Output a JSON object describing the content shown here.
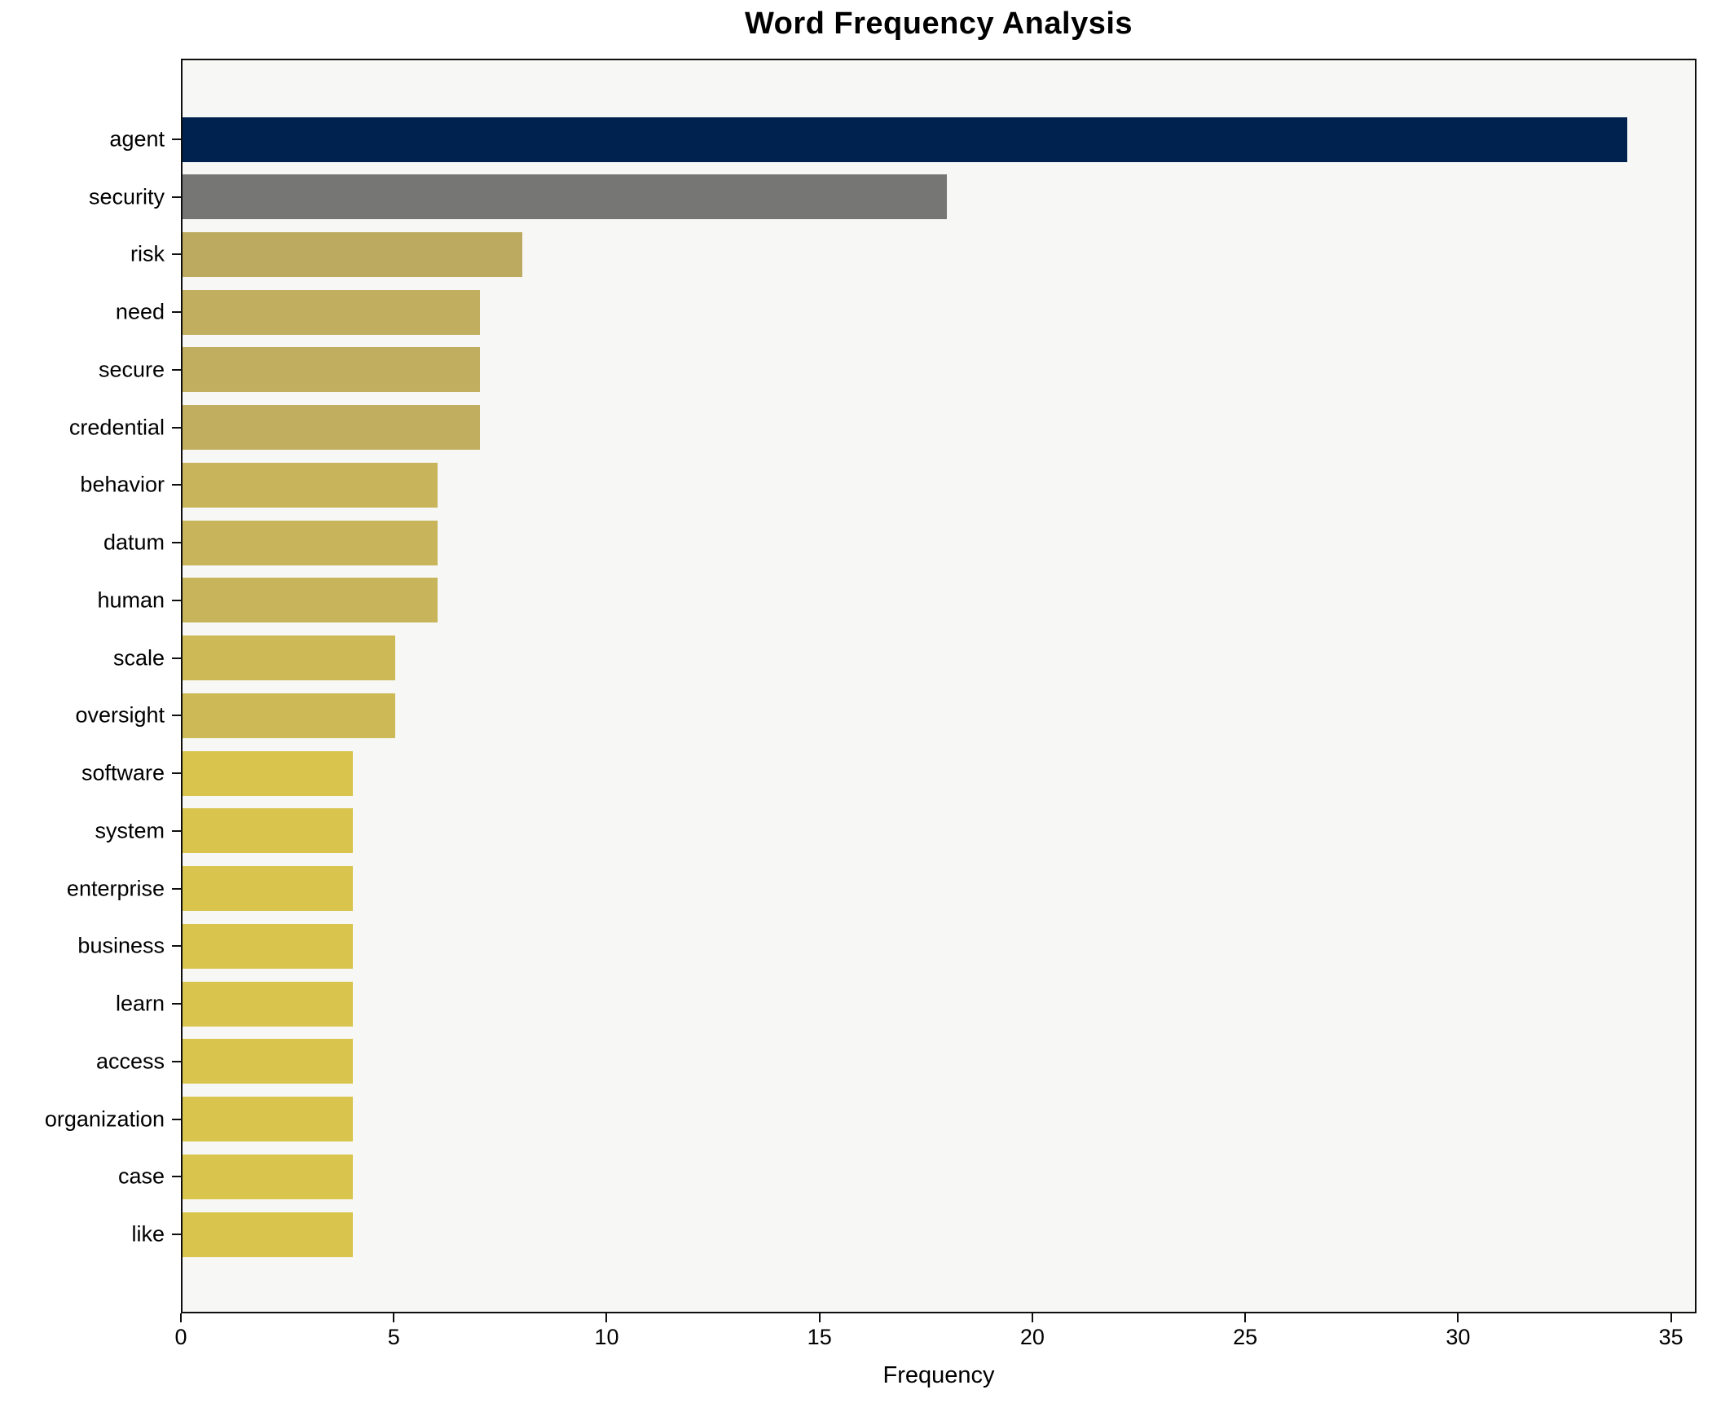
{
  "chart_data": {
    "type": "bar",
    "orientation": "horizontal",
    "title": "Word Frequency Analysis",
    "xlabel": "Frequency",
    "ylabel": "",
    "categories": [
      "agent",
      "security",
      "risk",
      "need",
      "secure",
      "credential",
      "behavior",
      "datum",
      "human",
      "scale",
      "oversight",
      "software",
      "system",
      "enterprise",
      "business",
      "learn",
      "access",
      "organization",
      "case",
      "like"
    ],
    "values": [
      34,
      18,
      8,
      7,
      7,
      7,
      6,
      6,
      6,
      5,
      5,
      4,
      4,
      4,
      4,
      4,
      4,
      4,
      4,
      4
    ],
    "bar_colors": [
      "#00224e",
      "#767674",
      "#bbaa60",
      "#c1ae5e",
      "#c1ae5e",
      "#c1ae5e",
      "#c7b45b",
      "#c7b45b",
      "#c7b45b",
      "#cdba57",
      "#cdba57",
      "#d9c54e",
      "#d9c54e",
      "#d9c54e",
      "#d9c54e",
      "#d9c54e",
      "#d9c54e",
      "#d9c54e",
      "#d9c54e",
      "#d9c54e"
    ],
    "xticks": [
      0,
      5,
      10,
      15,
      20,
      25,
      30,
      35
    ],
    "xlim": [
      0,
      35.6
    ],
    "grid": false,
    "legend_position": "none",
    "colors": {
      "plot_background": "#f7f7f5",
      "figure_background": "#ffffff",
      "spine": "#0f0f0f",
      "text": "#000000"
    }
  }
}
